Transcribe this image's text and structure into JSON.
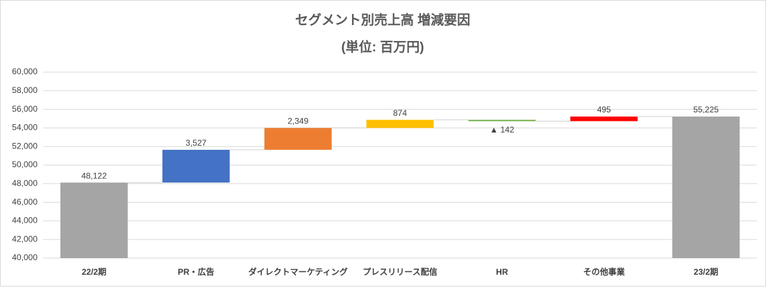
{
  "chart_data": {
    "type": "waterfall",
    "title": "セグメント別売上高 増減要因",
    "subtitle": "(単位: 百万円)",
    "categories": [
      "22/2期",
      "PR・広告",
      "ダイレクトマーケティング",
      "プレスリリース配信",
      "HR",
      "その他事業",
      "23/2期"
    ],
    "values": [
      48122,
      3527,
      2349,
      874,
      -142,
      495,
      55225
    ],
    "value_labels": [
      "48,122",
      "3,527",
      "2,349",
      "874",
      "▲ 142",
      "495",
      "55,225"
    ],
    "measures": [
      "total",
      "relative",
      "relative",
      "relative",
      "relative",
      "relative",
      "total"
    ],
    "colors": [
      "#a5a5a5",
      "#4472c4",
      "#ed7d31",
      "#ffc000",
      "#70ad47",
      "#ff0000",
      "#a5a5a5"
    ],
    "ylim": [
      40000,
      60000
    ],
    "yticks": [
      {
        "value": 40000,
        "label": "40,000"
      },
      {
        "value": 42000,
        "label": "42,000"
      },
      {
        "value": 44000,
        "label": "44,000"
      },
      {
        "value": 46000,
        "label": "46,000"
      },
      {
        "value": 48000,
        "label": "48,000"
      },
      {
        "value": 50000,
        "label": "50,000"
      },
      {
        "value": 52000,
        "label": "52,000"
      },
      {
        "value": 54000,
        "label": "54,000"
      },
      {
        "value": 56000,
        "label": "56,000"
      },
      {
        "value": 58000,
        "label": "58,000"
      },
      {
        "value": 60000,
        "label": "60,000"
      }
    ],
    "grid": true
  }
}
